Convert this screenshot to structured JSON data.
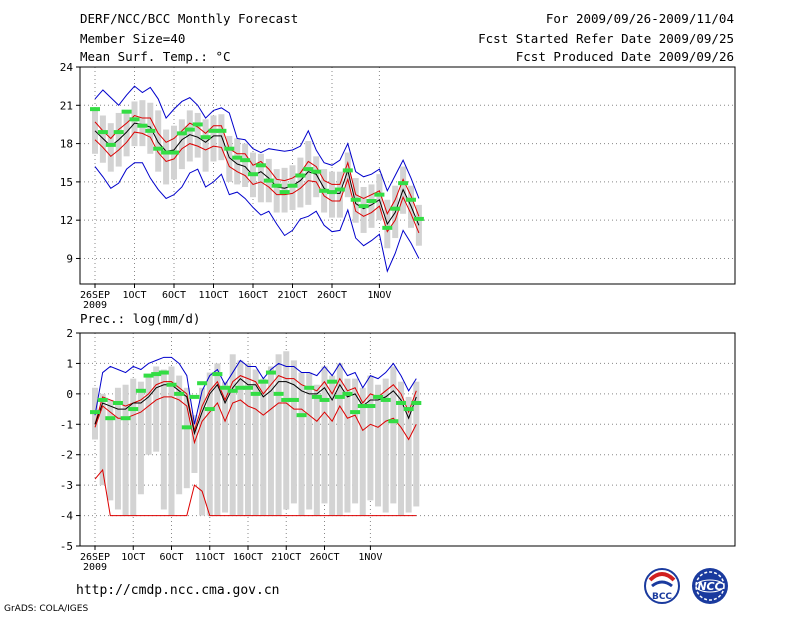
{
  "header": {
    "title": "DERF/NCC/BCC Monthly Forecast",
    "member_size": "Member Size=40",
    "variable": "Mean Surf. Temp.: °C",
    "period": "For 2009/09/26-2009/11/04",
    "started": "Fcst Started Refer Date 2009/09/25",
    "produced": "Fcst Produced Date 2009/09/26"
  },
  "footer": {
    "url": "http://cmdp.ncc.cma.gov.cn",
    "grads": "GrADS: COLA/IGES"
  },
  "logos": {
    "bcc_text": "BCC",
    "ncc_text": "NCC"
  },
  "chart_data": [
    {
      "type": "box-ensemble",
      "title": "Mean Surf. Temp.: °C",
      "year_label": "2009",
      "x_labels": [
        "26SEP",
        "1OCT",
        "6OCT",
        "11OCT",
        "16OCT",
        "21OCT",
        "26OCT",
        "1NOV"
      ],
      "x_label_days": [
        0,
        5,
        10,
        15,
        20,
        25,
        30,
        36
      ],
      "ylim": [
        7,
        24
      ],
      "yticks": [
        9,
        12,
        15,
        18,
        21,
        24
      ],
      "series": [
        {
          "name": "max",
          "color": "#0000cc",
          "values": [
            21.5,
            22.2,
            21.6,
            21.0,
            21.8,
            22.5,
            22.0,
            22.4,
            21.5,
            20.0,
            20.7,
            21.3,
            21.6,
            21.0,
            20.0,
            20.6,
            20.8,
            20.4,
            18.4,
            18.3,
            17.6,
            17.3,
            17.6,
            17.5,
            17.4,
            17.5,
            17.8,
            19.0,
            17.5,
            16.5,
            16.3,
            16.7,
            18.0,
            15.8,
            15.4,
            15.6,
            16.0,
            14.3,
            15.5,
            16.7,
            15.3,
            13.7
          ]
        },
        {
          "name": "upper",
          "color": "#dd0000",
          "values": [
            19.7,
            19.0,
            18.4,
            19.1,
            19.6,
            20.2,
            20.0,
            20.0,
            18.8,
            18.1,
            18.4,
            19.0,
            19.6,
            19.3,
            18.8,
            19.4,
            19.4,
            17.6,
            17.2,
            17.2,
            16.3,
            16.6,
            16.0,
            15.2,
            15.1,
            15.3,
            15.7,
            16.6,
            16.2,
            15.1,
            14.8,
            14.8,
            16.5,
            14.0,
            13.7,
            14.0,
            14.3,
            12.5,
            13.6,
            15.2,
            13.9,
            12.3
          ]
        },
        {
          "name": "mean",
          "color": "#000000",
          "values": [
            19.0,
            18.4,
            17.8,
            18.3,
            18.9,
            19.6,
            19.5,
            19.3,
            18.1,
            17.4,
            17.5,
            18.3,
            18.7,
            18.5,
            18.1,
            18.6,
            18.6,
            16.9,
            16.4,
            16.2,
            15.5,
            15.8,
            15.3,
            14.6,
            14.5,
            14.7,
            15.1,
            15.8,
            15.6,
            14.5,
            14.1,
            14.1,
            15.9,
            13.3,
            12.9,
            13.2,
            13.6,
            11.7,
            12.6,
            14.4,
            13.1,
            11.6
          ]
        },
        {
          "name": "lower",
          "color": "#dd0000",
          "values": [
            18.3,
            17.7,
            17.0,
            17.5,
            18.1,
            18.9,
            18.8,
            18.5,
            17.3,
            16.6,
            16.8,
            17.6,
            18.0,
            17.8,
            17.5,
            17.8,
            17.7,
            16.2,
            15.8,
            15.5,
            14.8,
            15.0,
            14.6,
            14.0,
            14.0,
            14.1,
            14.5,
            15.1,
            15.0,
            13.9,
            13.5,
            13.5,
            15.2,
            12.7,
            12.3,
            12.6,
            13.1,
            11.1,
            12.0,
            13.8,
            12.5,
            11.0
          ]
        },
        {
          "name": "min",
          "color": "#0000cc",
          "values": [
            16.2,
            15.4,
            14.5,
            14.9,
            16.0,
            16.5,
            16.5,
            15.3,
            14.4,
            13.7,
            14.0,
            14.6,
            15.7,
            16.0,
            14.6,
            15.0,
            15.6,
            14.0,
            14.2,
            13.7,
            13.0,
            12.4,
            12.7,
            11.7,
            10.8,
            11.2,
            12.1,
            12.3,
            12.7,
            11.6,
            11.1,
            11.2,
            12.8,
            10.6,
            10.0,
            10.4,
            10.9,
            8.0,
            9.4,
            11.2,
            10.2,
            9.0
          ]
        },
        {
          "name": "box_low",
          "color": "#d3d3d3",
          "values": [
            17.2,
            16.5,
            15.8,
            16.2,
            17.0,
            17.8,
            17.8,
            17.2,
            15.8,
            14.8,
            15.2,
            16.0,
            16.6,
            16.9,
            15.8,
            16.6,
            16.7,
            15.0,
            14.8,
            14.6,
            13.8,
            13.4,
            13.4,
            12.6,
            12.6,
            12.8,
            13.0,
            13.2,
            13.8,
            12.6,
            12.2,
            12.2,
            13.8,
            11.8,
            11.0,
            11.4,
            12.0,
            9.8,
            10.6,
            12.5,
            11.4,
            10.0
          ]
        },
        {
          "name": "box_high",
          "color": "#d3d3d3",
          "values": [
            20.8,
            20.2,
            19.6,
            20.4,
            20.6,
            21.3,
            21.4,
            21.2,
            20.6,
            19.1,
            19.4,
            19.9,
            20.6,
            20.4,
            19.9,
            20.2,
            20.3,
            18.6,
            18.4,
            18.0,
            17.3,
            17.2,
            16.8,
            16.0,
            16.1,
            16.3,
            16.9,
            18.2,
            17.0,
            16.0,
            15.8,
            15.8,
            17.3,
            15.3,
            14.6,
            14.8,
            15.6,
            13.6,
            14.7,
            16.2,
            14.7,
            13.2
          ]
        },
        {
          "name": "observed",
          "color": "#33dd44",
          "values": [
            20.7,
            18.9,
            17.9,
            18.9,
            20.5,
            19.9,
            19.4,
            19.0,
            17.6,
            17.3,
            17.3,
            18.8,
            19.1,
            19.5,
            18.5,
            19.0,
            19.0,
            17.6,
            16.9,
            16.7,
            15.6,
            16.3,
            15.1,
            14.7,
            14.2,
            14.7,
            15.5,
            16.0,
            15.8,
            14.3,
            14.2,
            14.4,
            15.9,
            13.6,
            13.1,
            13.5,
            14.0,
            11.4,
            12.9,
            14.9,
            13.6,
            12.1
          ]
        }
      ]
    },
    {
      "type": "box-ensemble",
      "title": "Prec.: log(mm/d)",
      "year_label": "2009",
      "x_labels": [
        "26SEP",
        "1OCT",
        "6OCT",
        "11OCT",
        "16OCT",
        "21OCT",
        "26OCT",
        "1NOV"
      ],
      "x_label_days": [
        0,
        5,
        10,
        15,
        20,
        25,
        30,
        36
      ],
      "ylim": [
        -5,
        2
      ],
      "yticks": [
        -5,
        -4,
        -3,
        -2,
        -1,
        0,
        1,
        2
      ],
      "series": [
        {
          "name": "max",
          "color": "#0000cc",
          "values": [
            -0.7,
            0.7,
            0.9,
            0.8,
            0.7,
            0.9,
            0.8,
            1.0,
            1.1,
            1.2,
            1.2,
            1.0,
            0.6,
            -1.0,
            0.1,
            0.6,
            0.8,
            0.3,
            0.7,
            1.1,
            0.9,
            0.9,
            0.5,
            0.8,
            1.0,
            0.9,
            0.9,
            0.7,
            0.7,
            0.6,
            0.9,
            0.6,
            1.0,
            0.6,
            0.7,
            0.2,
            0.6,
            0.5,
            0.7,
            1.0,
            0.6,
            0.1,
            0.5
          ]
        },
        {
          "name": "upper",
          "color": "#dd0000",
          "values": [
            -1.0,
            -0.1,
            -0.2,
            -0.3,
            -0.4,
            -0.3,
            -0.2,
            0.0,
            0.3,
            0.4,
            0.4,
            0.2,
            0.0,
            -1.2,
            -0.4,
            0.1,
            0.4,
            -0.2,
            0.4,
            0.6,
            0.5,
            0.4,
            0.0,
            0.3,
            0.6,
            0.5,
            0.5,
            0.3,
            0.2,
            0.1,
            0.4,
            0.0,
            0.5,
            0.1,
            0.2,
            -0.3,
            0.0,
            -0.1,
            0.1,
            0.3,
            0.0,
            -0.6,
            0.1
          ]
        },
        {
          "name": "mean",
          "color": "#000000",
          "values": [
            -1.0,
            -0.3,
            -0.4,
            -0.5,
            -0.5,
            -0.3,
            -0.3,
            -0.1,
            0.2,
            0.3,
            0.3,
            0.1,
            -0.1,
            -1.3,
            -0.6,
            0.0,
            0.3,
            -0.3,
            0.2,
            0.5,
            0.3,
            0.3,
            -0.1,
            0.1,
            0.4,
            0.4,
            0.3,
            0.1,
            0.0,
            0.0,
            0.2,
            -0.2,
            0.3,
            -0.1,
            0.0,
            -0.4,
            -0.2,
            -0.2,
            -0.1,
            0.1,
            -0.2,
            -0.8,
            -0.1
          ]
        },
        {
          "name": "lower",
          "color": "#dd0000",
          "values": [
            -1.1,
            -0.4,
            -0.6,
            -0.8,
            -0.8,
            -0.7,
            -0.6,
            -0.4,
            -0.2,
            -0.1,
            -0.1,
            -0.2,
            -0.4,
            -1.6,
            -0.9,
            -0.6,
            -0.3,
            -0.9,
            -0.3,
            -0.2,
            -0.4,
            -0.5,
            -0.7,
            -0.5,
            -0.3,
            -0.3,
            -0.5,
            -0.5,
            -0.7,
            -0.9,
            -0.6,
            -0.9,
            -0.4,
            -0.8,
            -0.7,
            -1.2,
            -1.0,
            -1.1,
            -0.9,
            -0.8,
            -1.1,
            -1.5,
            -1.0
          ]
        },
        {
          "name": "min",
          "color": "#dd0000",
          "values": [
            -2.8,
            -2.5,
            -4.0,
            -4.0,
            -4.0,
            -4.0,
            -4.0,
            -4.0,
            -4.0,
            -4.0,
            -4.0,
            -4.0,
            -4.0,
            -3.0,
            -3.2,
            -4.0,
            -4.0,
            -4.0,
            -4.0,
            -4.0,
            -4.0,
            -4.0,
            -4.0,
            -4.0,
            -4.0,
            -4.0,
            -4.0,
            -4.0,
            -4.0,
            -4.0,
            -4.0,
            -4.0,
            -4.0,
            -4.0,
            -4.0,
            -4.0,
            -4.0,
            -4.0,
            -4.0,
            -4.0,
            -4.0,
            -4.0,
            -4.0
          ]
        },
        {
          "name": "box_low",
          "color": "#d3d3d3",
          "values": [
            -1.5,
            -3.0,
            -3.5,
            -3.8,
            -4.0,
            -4.0,
            -3.3,
            -2.0,
            -1.9,
            -3.8,
            -4.0,
            -3.3,
            -3.1,
            -2.6,
            -4.0,
            -4.0,
            -4.0,
            -3.9,
            -4.0,
            -4.0,
            -4.0,
            -4.0,
            -4.0,
            -4.0,
            -4.0,
            -3.8,
            -3.6,
            -4.0,
            -3.8,
            -4.0,
            -3.6,
            -4.0,
            -4.0,
            -3.9,
            -3.6,
            -4.0,
            -3.5,
            -3.7,
            -3.9,
            -3.6,
            -4.0,
            -3.9,
            -3.7
          ]
        },
        {
          "name": "box_high",
          "color": "#d3d3d3",
          "values": [
            0.2,
            0.0,
            -0.2,
            0.2,
            0.3,
            0.5,
            0.4,
            0.6,
            0.9,
            0.8,
            0.9,
            0.6,
            0.2,
            -0.7,
            0.2,
            0.7,
            1.0,
            0.4,
            1.3,
            1.1,
            1.0,
            0.8,
            0.5,
            0.9,
            1.3,
            1.4,
            1.1,
            0.7,
            0.7,
            0.3,
            0.9,
            0.6,
            1.0,
            0.5,
            0.5,
            0.2,
            0.6,
            0.3,
            0.5,
            0.9,
            0.4,
            -0.1,
            0.4
          ]
        },
        {
          "name": "observed",
          "color": "#33dd44",
          "values": [
            -0.6,
            -0.2,
            -0.8,
            -0.3,
            -0.8,
            -0.5,
            0.1,
            0.6,
            0.65,
            0.7,
            0.3,
            0.0,
            -1.1,
            -0.1,
            0.35,
            -0.5,
            0.65,
            0.2,
            0.1,
            0.2,
            0.2,
            0.0,
            0.4,
            0.7,
            0.0,
            -0.2,
            -0.2,
            -0.7,
            0.2,
            -0.1,
            -0.2,
            0.4,
            -0.1,
            0.0,
            -0.6,
            -0.4,
            -0.4,
            -0.1,
            -0.2,
            -0.9,
            -0.3,
            -0.5,
            -0.3
          ]
        }
      ]
    }
  ]
}
